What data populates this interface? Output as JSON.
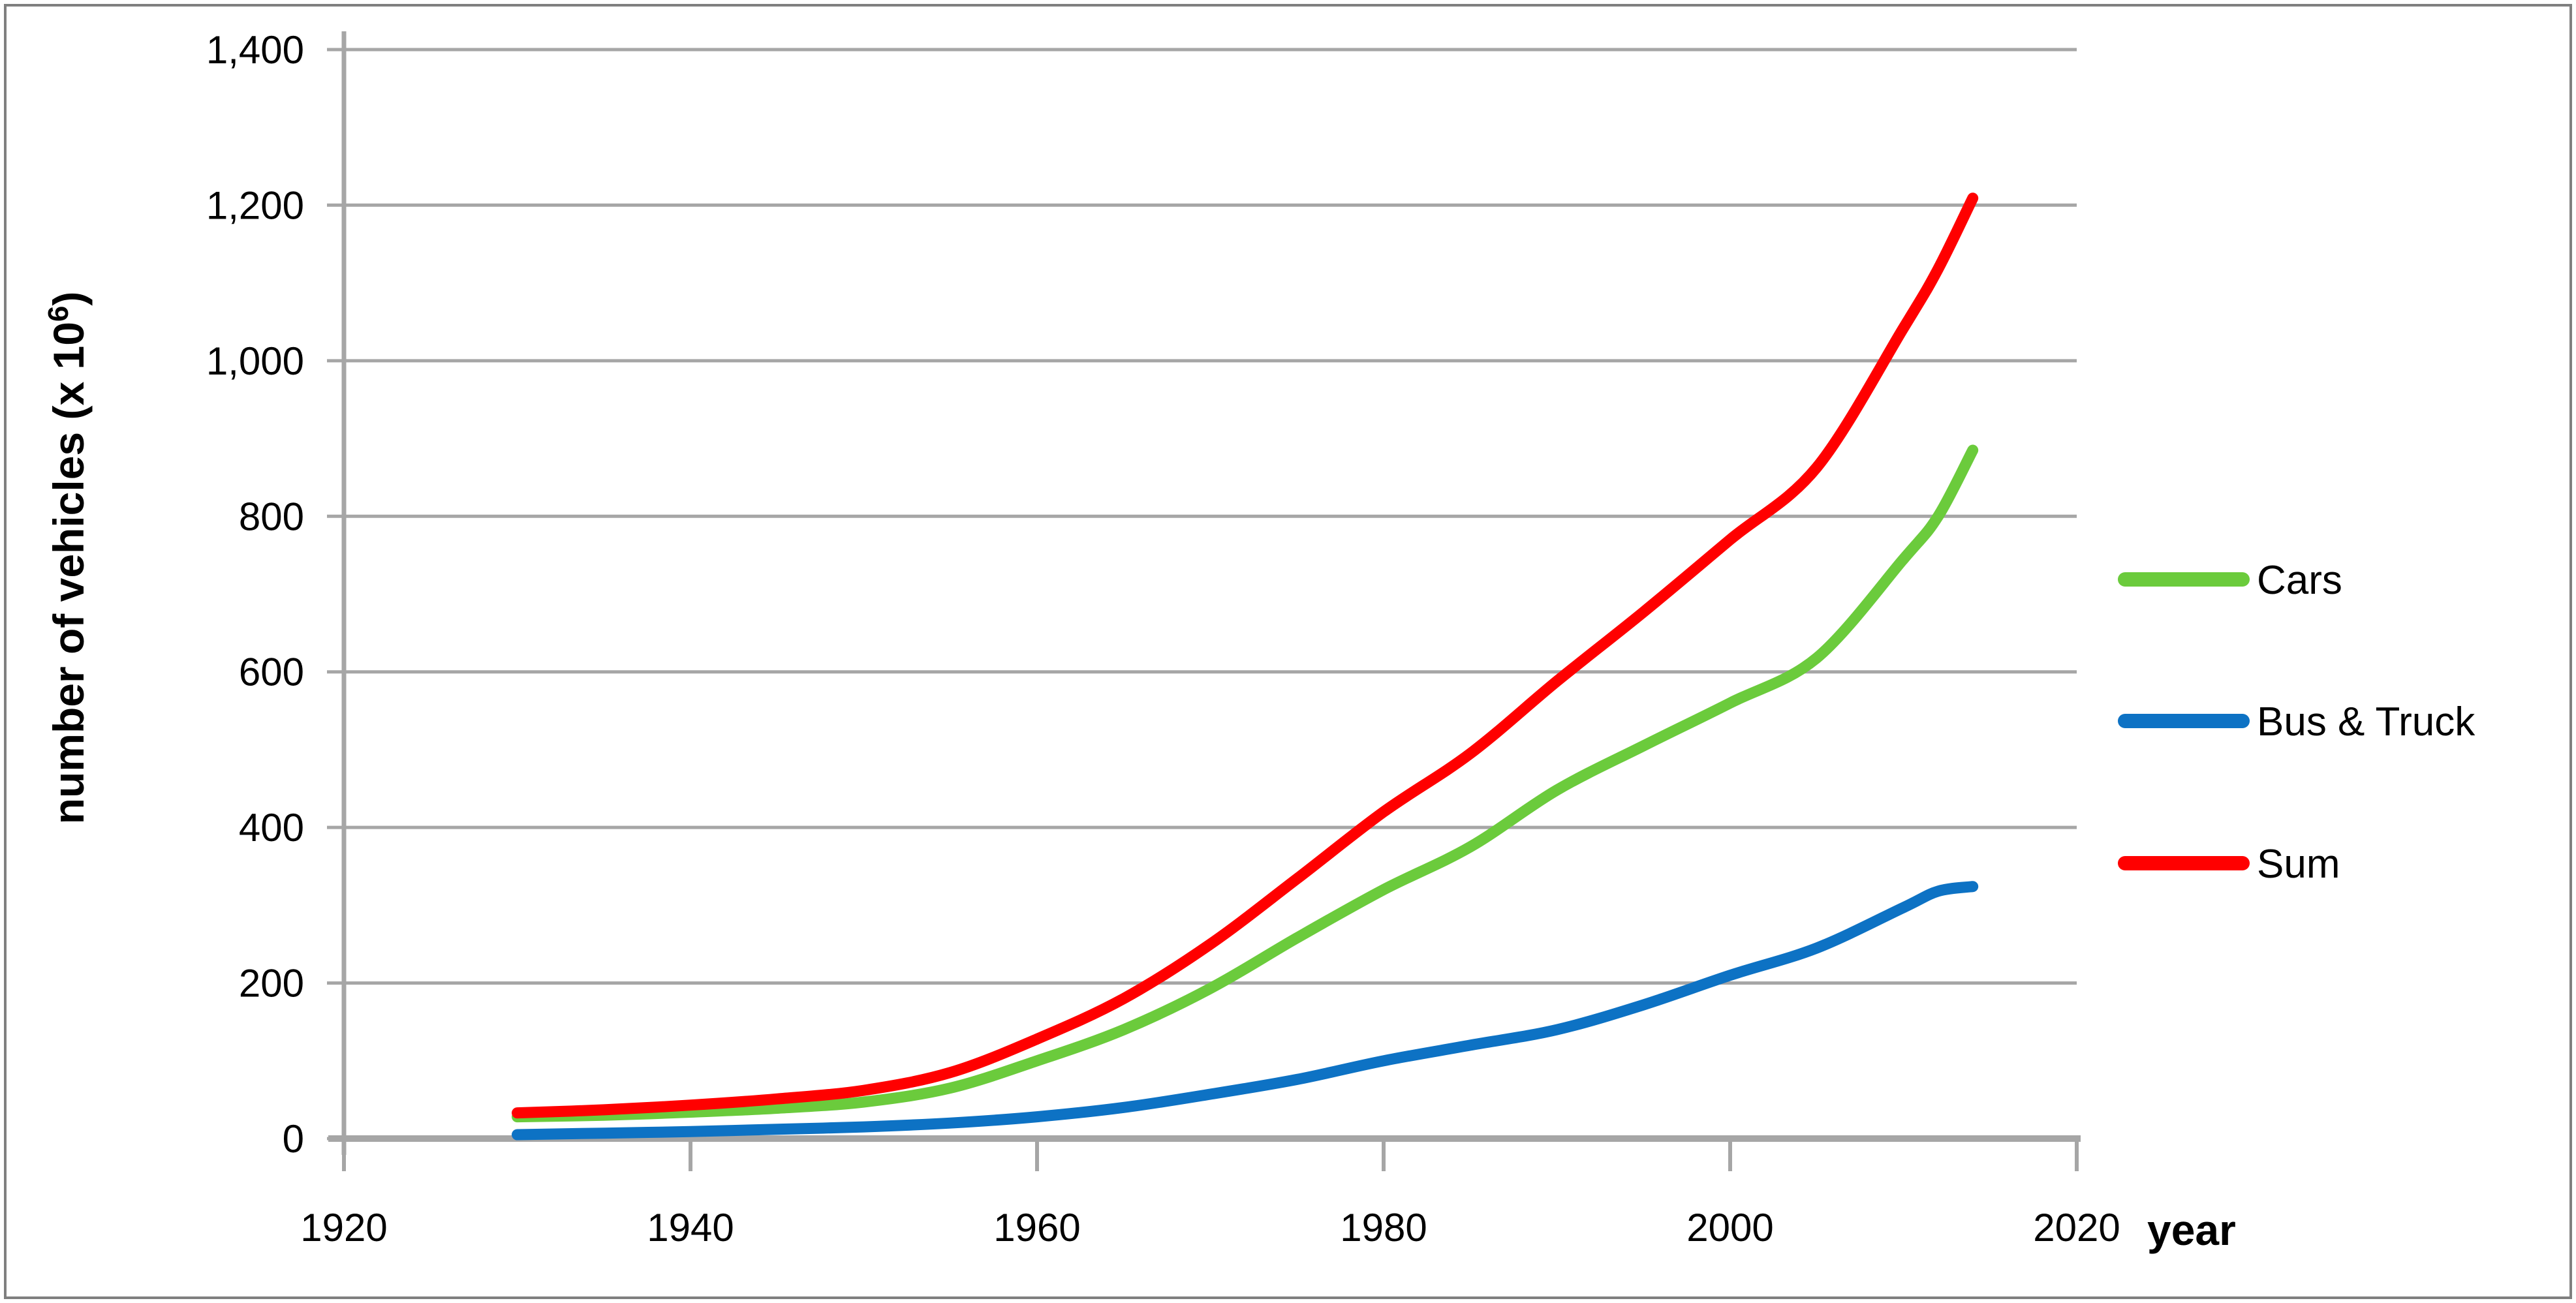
{
  "figure": {
    "background": "#FFFFFF",
    "border_color": "#7F7F7F"
  },
  "chart_data": {
    "type": "line",
    "title": "",
    "xlabel": "year",
    "ylabel_prefix": "number of vehicles (x 10",
    "ylabel_sup": "6",
    "ylabel_suffix": ")",
    "xlim": [
      1920,
      2020
    ],
    "ylim": [
      0,
      1400
    ],
    "x_ticks": [
      1920,
      1940,
      1960,
      1980,
      2000,
      2020
    ],
    "y_ticks": [
      0,
      200,
      400,
      600,
      800,
      1000,
      1200,
      1400
    ],
    "y_tick_labels": [
      "0",
      "200",
      "400",
      "600",
      "800",
      "1,000",
      "1,200",
      "1,400"
    ],
    "grid": true,
    "legend_position": "right",
    "gridline_color": "#A6A6A6",
    "axis_color": "#A6A6A6",
    "text_color": "#000000",
    "x": [
      1930,
      1935,
      1940,
      1945,
      1950,
      1955,
      1960,
      1965,
      1970,
      1975,
      1980,
      1985,
      1990,
      1995,
      2000,
      2005,
      2010,
      2012,
      2014
    ],
    "series": [
      {
        "name": "Cars",
        "color": "#6BCB3C",
        "values": [
          28,
          30,
          34,
          39,
          47,
          65,
          100,
          140,
          193,
          258,
          320,
          375,
          448,
          505,
          560,
          618,
          745,
          800,
          885
        ]
      },
      {
        "name": "Bus & Truck",
        "color": "#0D72C4",
        "values": [
          5,
          7,
          9,
          12,
          15,
          20,
          28,
          40,
          57,
          76,
          100,
          120,
          140,
          172,
          210,
          245,
          297,
          318,
          324
        ]
      },
      {
        "name": "Sum",
        "color": "#FF0000",
        "values": [
          33,
          37,
          43,
          51,
          62,
          85,
          128,
          180,
          250,
          334,
          420,
          495,
          588,
          677,
          770,
          863,
          1042,
          1118,
          1209
        ]
      }
    ]
  },
  "legend": {
    "items": [
      "Cars",
      "Bus & Truck",
      "Sum"
    ]
  }
}
